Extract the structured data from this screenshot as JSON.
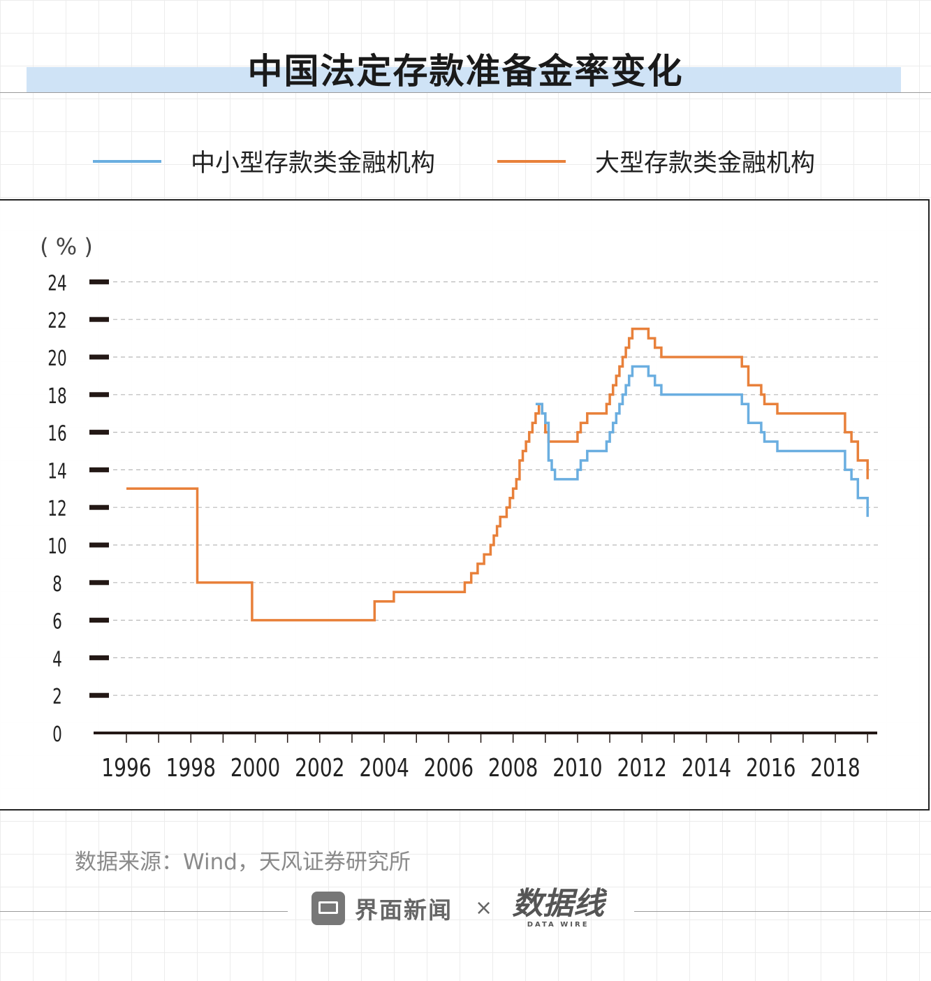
{
  "title": "中国法定存款准备金率变化",
  "legend": [
    {
      "label": "中小型存款类金融机构",
      "color": "#6aaee0"
    },
    {
      "label": "大型存款类金融机构",
      "color": "#e8803a"
    }
  ],
  "y_unit": "( % )",
  "source": "数据来源：Wind，天风证券研究所",
  "footer": {
    "brand": "界面新闻",
    "times": "×",
    "logo": "数据线",
    "logo_sub": "DATA WIRE"
  },
  "chart_data": {
    "type": "line",
    "title": "中国法定存款准备金率变化",
    "xlabel": "",
    "ylabel": "( % )",
    "x_ticks": [
      "1996",
      "1998",
      "2000",
      "2002",
      "2004",
      "2006",
      "2008",
      "2010",
      "2012",
      "2014",
      "2016",
      "2018"
    ],
    "y_ticks": [
      "0",
      "2",
      "4",
      "6",
      "8",
      "10",
      "12",
      "14",
      "16",
      "18",
      "20",
      "22",
      "24"
    ],
    "ylim": [
      0,
      24
    ],
    "xlim": [
      1996.0,
      2019.3
    ],
    "grid": "horizontal dashed",
    "legend_position": "top",
    "step": true,
    "series": [
      {
        "name": "大型存款类金融机构",
        "color": "#e8803a",
        "points": [
          [
            1996.0,
            13
          ],
          [
            1998.2,
            13
          ],
          [
            1998.2,
            8
          ],
          [
            1999.9,
            8
          ],
          [
            1999.9,
            6
          ],
          [
            2003.7,
            6
          ],
          [
            2003.7,
            7
          ],
          [
            2004.3,
            7
          ],
          [
            2004.3,
            7.5
          ],
          [
            2006.5,
            7.5
          ],
          [
            2006.5,
            8
          ],
          [
            2006.7,
            8
          ],
          [
            2006.7,
            8.5
          ],
          [
            2006.9,
            8.5
          ],
          [
            2006.9,
            9
          ],
          [
            2007.1,
            9
          ],
          [
            2007.1,
            9.5
          ],
          [
            2007.3,
            9.5
          ],
          [
            2007.3,
            10
          ],
          [
            2007.4,
            10
          ],
          [
            2007.4,
            10.5
          ],
          [
            2007.5,
            10.5
          ],
          [
            2007.5,
            11
          ],
          [
            2007.6,
            11
          ],
          [
            2007.6,
            11.5
          ],
          [
            2007.8,
            11.5
          ],
          [
            2007.8,
            12
          ],
          [
            2007.9,
            12
          ],
          [
            2007.9,
            12.5
          ],
          [
            2008.0,
            12.5
          ],
          [
            2008.0,
            13
          ],
          [
            2008.1,
            13
          ],
          [
            2008.1,
            13.5
          ],
          [
            2008.2,
            13.5
          ],
          [
            2008.2,
            14.5
          ],
          [
            2008.3,
            14.5
          ],
          [
            2008.3,
            15
          ],
          [
            2008.4,
            15
          ],
          [
            2008.4,
            15.5
          ],
          [
            2008.5,
            15.5
          ],
          [
            2008.5,
            16
          ],
          [
            2008.6,
            16
          ],
          [
            2008.6,
            16.5
          ],
          [
            2008.7,
            16.5
          ],
          [
            2008.7,
            17
          ],
          [
            2008.8,
            17
          ],
          [
            2008.8,
            17.5
          ],
          [
            2008.9,
            17.5
          ],
          [
            2008.9,
            17
          ],
          [
            2009.0,
            17
          ],
          [
            2009.0,
            16
          ],
          [
            2009.1,
            16
          ],
          [
            2009.1,
            15.5
          ],
          [
            2010.0,
            15.5
          ],
          [
            2010.0,
            16
          ],
          [
            2010.1,
            16
          ],
          [
            2010.1,
            16.5
          ],
          [
            2010.3,
            16.5
          ],
          [
            2010.3,
            17
          ],
          [
            2010.9,
            17
          ],
          [
            2010.9,
            17.5
          ],
          [
            2011.0,
            17.5
          ],
          [
            2011.0,
            18
          ],
          [
            2011.1,
            18
          ],
          [
            2011.1,
            18.5
          ],
          [
            2011.2,
            18.5
          ],
          [
            2011.2,
            19
          ],
          [
            2011.3,
            19
          ],
          [
            2011.3,
            19.5
          ],
          [
            2011.4,
            19.5
          ],
          [
            2011.4,
            20
          ],
          [
            2011.5,
            20
          ],
          [
            2011.5,
            20.5
          ],
          [
            2011.6,
            20.5
          ],
          [
            2011.6,
            21
          ],
          [
            2011.7,
            21
          ],
          [
            2011.7,
            21.5
          ],
          [
            2012.2,
            21.5
          ],
          [
            2012.2,
            21
          ],
          [
            2012.4,
            21
          ],
          [
            2012.4,
            20.5
          ],
          [
            2012.6,
            20.5
          ],
          [
            2012.6,
            20
          ],
          [
            2015.1,
            20
          ],
          [
            2015.1,
            19.5
          ],
          [
            2015.3,
            19.5
          ],
          [
            2015.3,
            18.5
          ],
          [
            2015.7,
            18.5
          ],
          [
            2015.7,
            18
          ],
          [
            2015.8,
            18
          ],
          [
            2015.8,
            17.5
          ],
          [
            2016.2,
            17.5
          ],
          [
            2016.2,
            17
          ],
          [
            2018.3,
            17
          ],
          [
            2018.3,
            16
          ],
          [
            2018.5,
            16
          ],
          [
            2018.5,
            15.5
          ],
          [
            2018.7,
            15.5
          ],
          [
            2018.7,
            14.5
          ],
          [
            2019.0,
            14.5
          ],
          [
            2019.0,
            13.5
          ]
        ]
      },
      {
        "name": "中小型存款类金融机构",
        "color": "#6aaee0",
        "points": [
          [
            2008.7,
            17.5
          ],
          [
            2008.9,
            17.5
          ],
          [
            2008.9,
            17
          ],
          [
            2009.0,
            17
          ],
          [
            2009.0,
            16.5
          ],
          [
            2009.1,
            16.5
          ],
          [
            2009.1,
            14.5
          ],
          [
            2009.2,
            14.5
          ],
          [
            2009.2,
            14
          ],
          [
            2009.3,
            14
          ],
          [
            2009.3,
            13.5
          ],
          [
            2010.0,
            13.5
          ],
          [
            2010.0,
            14
          ],
          [
            2010.1,
            14
          ],
          [
            2010.1,
            14.5
          ],
          [
            2010.3,
            14.5
          ],
          [
            2010.3,
            15
          ],
          [
            2010.9,
            15
          ],
          [
            2010.9,
            15.5
          ],
          [
            2011.0,
            15.5
          ],
          [
            2011.0,
            16
          ],
          [
            2011.1,
            16
          ],
          [
            2011.1,
            16.5
          ],
          [
            2011.2,
            16.5
          ],
          [
            2011.2,
            17
          ],
          [
            2011.3,
            17
          ],
          [
            2011.3,
            17.5
          ],
          [
            2011.4,
            17.5
          ],
          [
            2011.4,
            18
          ],
          [
            2011.5,
            18
          ],
          [
            2011.5,
            18.5
          ],
          [
            2011.6,
            18.5
          ],
          [
            2011.6,
            19
          ],
          [
            2011.7,
            19
          ],
          [
            2011.7,
            19.5
          ],
          [
            2012.2,
            19.5
          ],
          [
            2012.2,
            19
          ],
          [
            2012.4,
            19
          ],
          [
            2012.4,
            18.5
          ],
          [
            2012.6,
            18.5
          ],
          [
            2012.6,
            18
          ],
          [
            2015.1,
            18
          ],
          [
            2015.1,
            17.5
          ],
          [
            2015.3,
            17.5
          ],
          [
            2015.3,
            16.5
          ],
          [
            2015.7,
            16.5
          ],
          [
            2015.7,
            16
          ],
          [
            2015.8,
            16
          ],
          [
            2015.8,
            15.5
          ],
          [
            2016.2,
            15.5
          ],
          [
            2016.2,
            15
          ],
          [
            2018.3,
            15
          ],
          [
            2018.3,
            14
          ],
          [
            2018.5,
            14
          ],
          [
            2018.5,
            13.5
          ],
          [
            2018.7,
            13.5
          ],
          [
            2018.7,
            12.5
          ],
          [
            2019.0,
            12.5
          ],
          [
            2019.0,
            11.5
          ]
        ]
      }
    ]
  }
}
